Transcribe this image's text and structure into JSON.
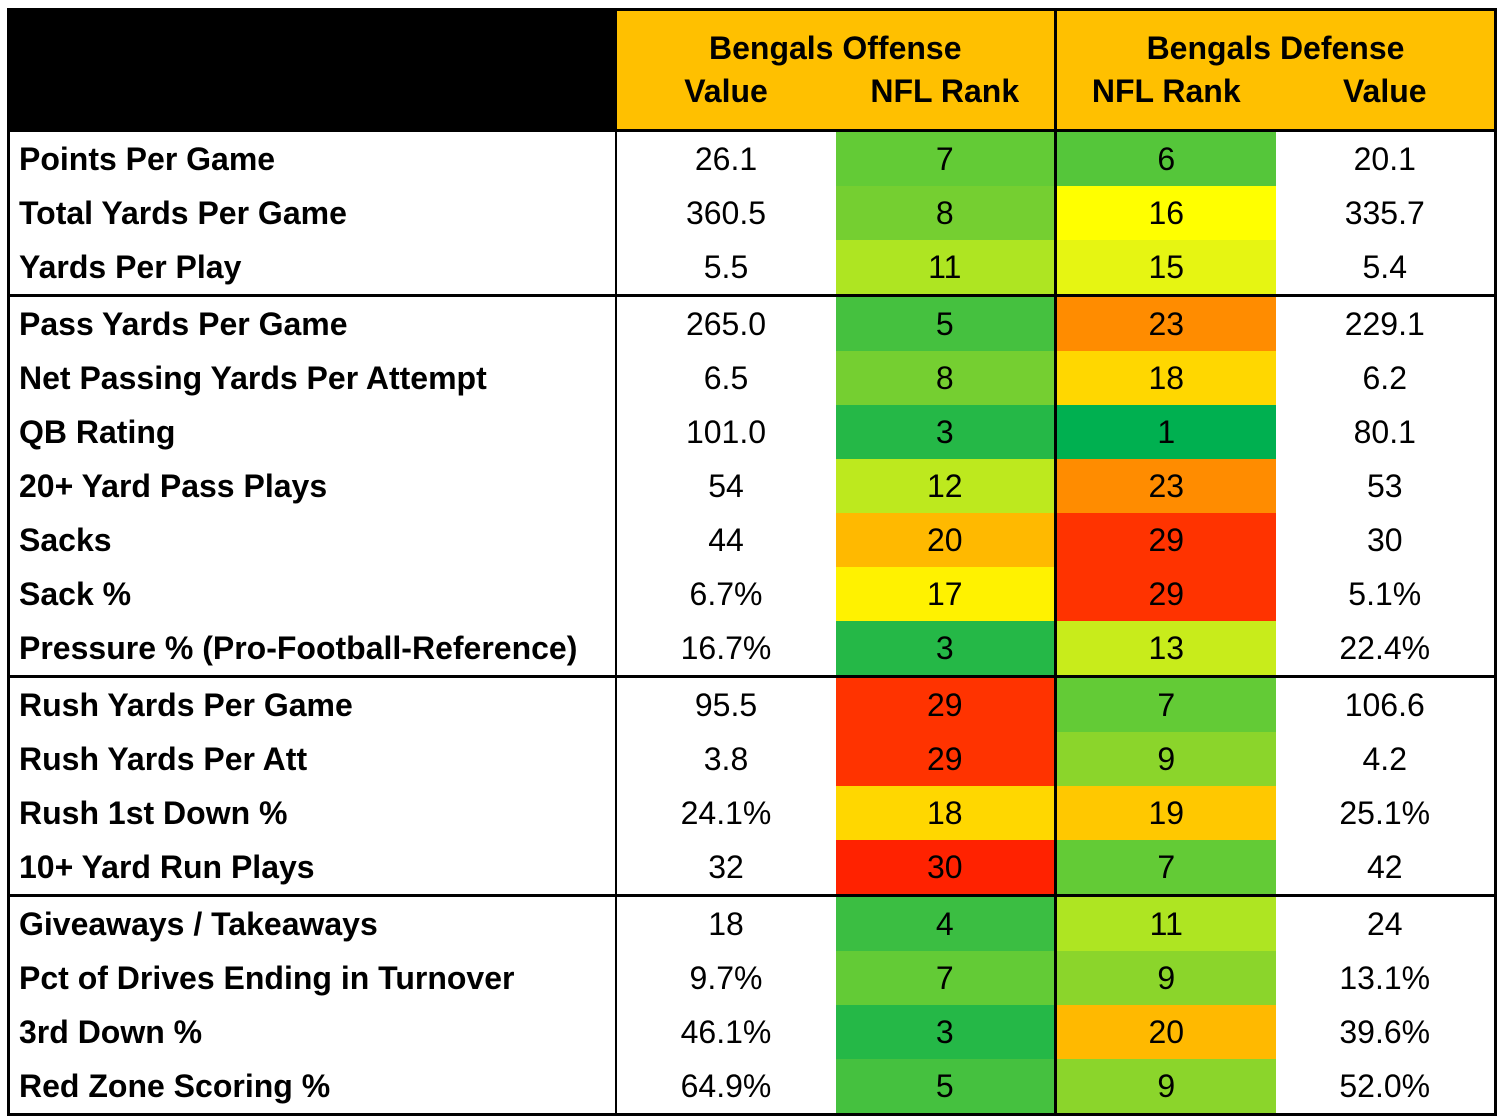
{
  "header": {
    "offense_title": "Bengals Offense",
    "defense_title": "Bengals Defense",
    "col_value": "Value",
    "col_rank": "NFL Rank"
  },
  "rank_colors": {
    "1": "#00B050",
    "3": "#25B847",
    "4": "#3BBE42",
    "5": "#45C13F",
    "6": "#55C63A",
    "7": "#63CB36",
    "8": "#75CF31",
    "9": "#8BD52B",
    "11": "#AEE522",
    "12": "#BDE91E",
    "13": "#C8EC1B",
    "15": "#E6F512",
    "16": "#FFFF00",
    "17": "#FFF200",
    "18": "#FFD700",
    "19": "#FFC800",
    "20": "#FFB900",
    "23": "#FF8C00",
    "29": "#FF3300",
    "30": "#FF2200"
  },
  "rows": [
    {
      "label": "Points Per Game",
      "off_value": "26.1",
      "off_rank": "7",
      "def_rank": "6",
      "def_value": "20.1"
    },
    {
      "label": "Total Yards Per Game",
      "off_value": "360.5",
      "off_rank": "8",
      "def_rank": "16",
      "def_value": "335.7"
    },
    {
      "label": "Yards Per Play",
      "off_value": "5.5",
      "off_rank": "11",
      "def_rank": "15",
      "def_value": "5.4"
    },
    {
      "label": "Pass Yards Per Game",
      "off_value": "265.0",
      "off_rank": "5",
      "def_rank": "23",
      "def_value": "229.1"
    },
    {
      "label": "Net Passing Yards Per Attempt",
      "off_value": "6.5",
      "off_rank": "8",
      "def_rank": "18",
      "def_value": "6.2"
    },
    {
      "label": "QB Rating",
      "off_value": "101.0",
      "off_rank": "3",
      "def_rank": "1",
      "def_value": "80.1"
    },
    {
      "label": "20+ Yard Pass Plays",
      "off_value": "54",
      "off_rank": "12",
      "def_rank": "23",
      "def_value": "53"
    },
    {
      "label": "Sacks",
      "off_value": "44",
      "off_rank": "20",
      "def_rank": "29",
      "def_value": "30"
    },
    {
      "label": "Sack %",
      "off_value": "6.7%",
      "off_rank": "17",
      "def_rank": "29",
      "def_value": "5.1%"
    },
    {
      "label": "Pressure % (Pro-Football-Reference)",
      "off_value": "16.7%",
      "off_rank": "3",
      "def_rank": "13",
      "def_value": "22.4%"
    },
    {
      "label": "Rush Yards Per Game",
      "off_value": "95.5",
      "off_rank": "29",
      "def_rank": "7",
      "def_value": "106.6"
    },
    {
      "label": "Rush Yards Per Att",
      "off_value": "3.8",
      "off_rank": "29",
      "def_rank": "9",
      "def_value": "4.2"
    },
    {
      "label": "Rush 1st Down %",
      "off_value": "24.1%",
      "off_rank": "18",
      "def_rank": "19",
      "def_value": "25.1%"
    },
    {
      "label": "10+ Yard Run Plays",
      "off_value": "32",
      "off_rank": "30",
      "def_rank": "7",
      "def_value": "42"
    },
    {
      "label": "Giveaways / Takeaways",
      "off_value": "18",
      "off_rank": "4",
      "def_rank": "11",
      "def_value": "24"
    },
    {
      "label": "Pct of Drives Ending in Turnover",
      "off_value": "9.7%",
      "off_rank": "7",
      "def_rank": "9",
      "def_value": "13.1%"
    },
    {
      "label": "3rd Down %",
      "off_value": "46.1%",
      "off_rank": "3",
      "def_rank": "20",
      "def_value": "39.6%"
    },
    {
      "label": "Red Zone Scoring %",
      "off_value": "64.9%",
      "off_rank": "5",
      "def_rank": "9",
      "def_value": "52.0%"
    }
  ]
}
